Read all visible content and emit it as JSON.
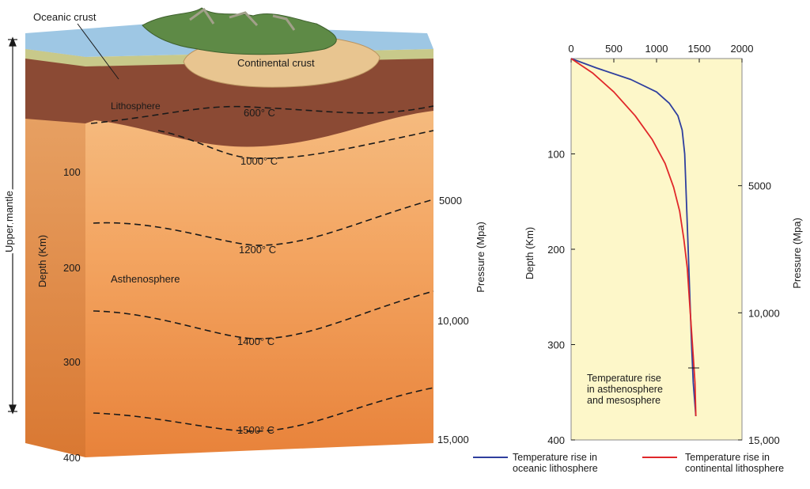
{
  "block": {
    "labels": {
      "oceanic_crust": "Oceanic crust",
      "continental_crust": "Continental crust",
      "lithosphere": "Lithosphere",
      "asthenosphere": "Asthenosphere",
      "upper_mantle": "Upper mantle",
      "depth_axis": "Depth (Km)",
      "pressure_axis": "Pressure (Mpa)"
    },
    "isotherms": [
      "600° C",
      "1000° C",
      "1200° C",
      "1400° C",
      "1500° C"
    ],
    "depth_ticks": [
      "100",
      "200",
      "300",
      "400"
    ],
    "pressure_ticks": [
      "5000",
      "10,000",
      "15,000"
    ]
  },
  "chart_data": {
    "type": "line",
    "xlabel": "",
    "ylabel": "Depth (Km)",
    "y2label": "Pressure (Mpa)",
    "xlim": [
      0,
      2000
    ],
    "ylim": [
      0,
      400
    ],
    "y_inverted": true,
    "x_ticks": [
      "0",
      "500",
      "1000",
      "1500",
      "2000"
    ],
    "y_ticks": [
      "100",
      "200",
      "300",
      "400"
    ],
    "y2_ticks": [
      "5000",
      "10,000",
      "15,000"
    ],
    "series": [
      {
        "name": "Temperature rise in oceanic lithosphere",
        "color": "#2f3f9e",
        "x": [
          0,
          300,
          700,
          1000,
          1150,
          1250,
          1300,
          1330,
          1350,
          1370,
          1390,
          1410,
          1430,
          1460
        ],
        "y": [
          0,
          10,
          22,
          35,
          47,
          60,
          75,
          100,
          150,
          200,
          250,
          300,
          340,
          375
        ]
      },
      {
        "name": "Temperature rise in continental lithosphere",
        "color": "#e0282a",
        "x": [
          0,
          250,
          500,
          750,
          950,
          1100,
          1200,
          1270,
          1320,
          1360,
          1390,
          1420,
          1450,
          1460
        ],
        "y": [
          0,
          15,
          35,
          60,
          85,
          110,
          135,
          160,
          190,
          220,
          260,
          300,
          340,
          375
        ]
      }
    ],
    "annotation": "Temperature rise in asthenosphere and mesosphere"
  }
}
